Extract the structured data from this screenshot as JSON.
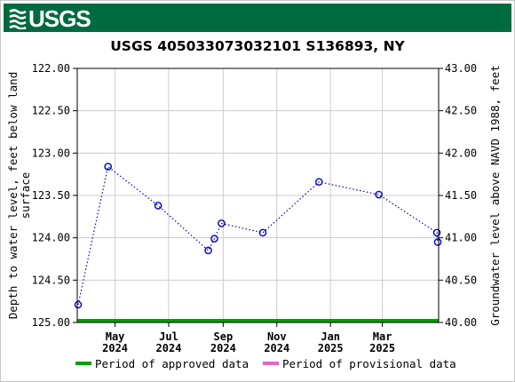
{
  "banner": {
    "agency": "USGS"
  },
  "chart_data": {
    "type": "scatter",
    "title": "USGS 405033073032101 S136893, NY",
    "ylabel_left": "Depth to water level, feet below land surface",
    "ylabel_left_lines": [
      "Depth to water level, feet below land",
      "surface"
    ],
    "ylabel_right": "Groundwater level above NAVD 1988, feet",
    "y_left_range": [
      125.0,
      122.0
    ],
    "y_left_ticks": [
      "122.00",
      "122.50",
      "123.00",
      "123.50",
      "124.00",
      "124.50",
      "125.00"
    ],
    "y_right_range": [
      40.0,
      43.0
    ],
    "y_right_ticks": [
      "43.00",
      "42.50",
      "42.00",
      "41.50",
      "41.00",
      "40.50",
      "40.00"
    ],
    "x_range": [
      "2024-03-19",
      "2025-05-04"
    ],
    "x_ticks": [
      {
        "date": "2024-05-01",
        "label": [
          "May",
          "2024"
        ]
      },
      {
        "date": "2024-07-01",
        "label": [
          "Jul",
          "2024"
        ]
      },
      {
        "date": "2024-09-01",
        "label": [
          "Sep",
          "2024"
        ]
      },
      {
        "date": "2024-11-01",
        "label": [
          "Nov",
          "2024"
        ]
      },
      {
        "date": "2025-01-01",
        "label": [
          "Jan",
          "2025"
        ]
      },
      {
        "date": "2025-03-01",
        "label": [
          "Mar",
          "2025"
        ]
      }
    ],
    "grid": true,
    "series": [
      {
        "marker": "open-circle",
        "line": "dotted",
        "color": "#0000cc",
        "x": [
          "2024-03-20",
          "2024-04-23",
          "2024-06-19",
          "2024-08-15",
          "2024-08-22",
          "2024-08-30",
          "2024-10-16",
          "2024-12-19",
          "2025-02-25",
          "2025-05-02",
          "2025-05-03"
        ],
        "y": [
          124.79,
          123.16,
          123.62,
          124.15,
          124.01,
          123.83,
          123.94,
          123.34,
          123.49,
          123.94,
          124.05
        ]
      }
    ],
    "approval_bar": {
      "from": "2024-03-19",
      "to": "2025-05-04",
      "color": "#00a000"
    },
    "legend": {
      "placement": "bottom",
      "items": [
        {
          "label": "Period of approved data",
          "color": "#00a000"
        },
        {
          "label": "Period of provisional data",
          "color": "#e066cc"
        }
      ]
    }
  }
}
